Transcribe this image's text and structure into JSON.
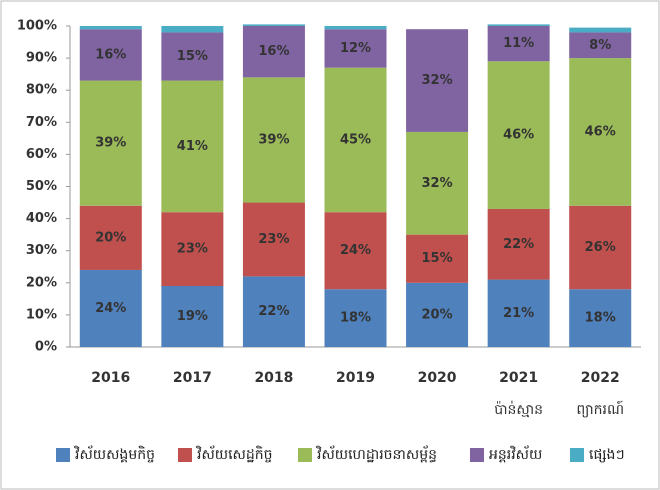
{
  "chart_data": {
    "type": "stacked_bar_100",
    "categories": [
      "2016",
      "2017",
      "2018",
      "2019",
      "2020",
      "2021",
      "2022"
    ],
    "category_notes": [
      null,
      null,
      null,
      null,
      null,
      "ប៉ាន់ស្មាន",
      "ព្យាករណ៍"
    ],
    "ylim": [
      0,
      100
    ],
    "yticks": [
      {
        "value": 0,
        "label": "0%"
      },
      {
        "value": 10,
        "label": "10%"
      },
      {
        "value": 20,
        "label": "20%"
      },
      {
        "value": 30,
        "label": "30%"
      },
      {
        "value": 40,
        "label": "40%"
      },
      {
        "value": 50,
        "label": "50%"
      },
      {
        "value": 60,
        "label": "60%"
      },
      {
        "value": 70,
        "label": "70%"
      },
      {
        "value": 80,
        "label": "80%"
      },
      {
        "value": 90,
        "label": "90%"
      },
      {
        "value": 100,
        "label": "100%"
      }
    ],
    "legend": "bottom",
    "series": [
      {
        "name": "វិស័យសង្គមកិច្ច",
        "color": "#4f81bd",
        "values": [
          24,
          19,
          22,
          18,
          20,
          21,
          18
        ],
        "value_labels": [
          "24%",
          "19%",
          "22%",
          "18%",
          "20%",
          "21%",
          "18%"
        ]
      },
      {
        "name": "វិស័យសេដ្ឋកិច្ច",
        "color": "#c0504d",
        "values": [
          20,
          23,
          23,
          24,
          15,
          22,
          26
        ],
        "value_labels": [
          "20%",
          "23%",
          "23%",
          "24%",
          "15%",
          "22%",
          "26%"
        ]
      },
      {
        "name": "វិស័យហេដ្ឋារចនាសម្ព័ន្ធ",
        "color": "#9bbb59",
        "values": [
          39,
          41,
          39,
          45,
          32,
          46,
          46
        ],
        "value_labels": [
          "39%",
          "41%",
          "39%",
          "45%",
          "32%",
          "46%",
          "46%"
        ]
      },
      {
        "name": "អន្តរវិស័យ",
        "color": "#8064a2",
        "values": [
          16,
          15,
          16,
          12,
          32,
          11,
          8
        ],
        "value_labels": [
          "16%",
          "15%",
          "16%",
          "12%",
          "32%",
          "11%",
          "8%"
        ]
      },
      {
        "name": "ផ្សេងៗ",
        "color": "#4bacc6",
        "values": [
          1,
          2,
          0.5,
          1,
          0,
          0.5,
          1.5
        ]
      }
    ]
  }
}
